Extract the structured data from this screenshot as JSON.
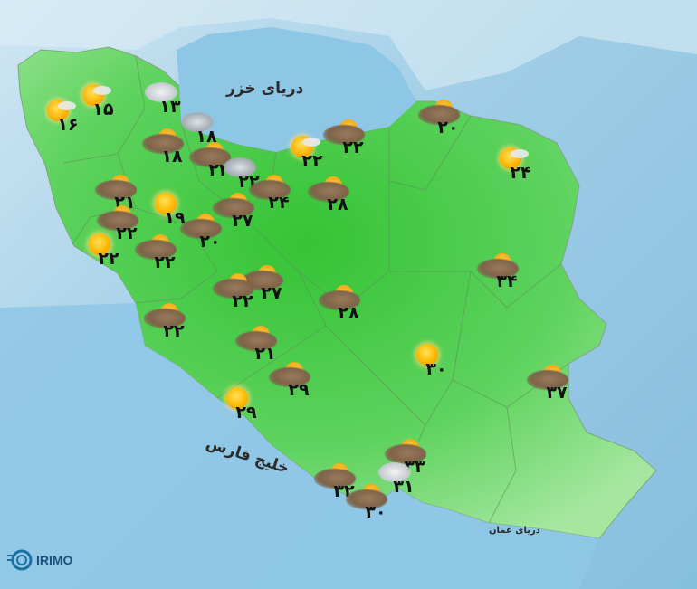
{
  "seas": {
    "caspian": "دریای خزر",
    "persian_gulf": "خلیج فارس",
    "oman_sea": "دریای عمان"
  },
  "logo": {
    "text": "IRIMO"
  },
  "colors": {
    "land": "#3fc83f",
    "sea": "#8ec7e6",
    "sun": "#ffb800",
    "dust": "#7d634a"
  },
  "stations": [
    {
      "temp": "۱۶",
      "icon": "sun-cloud"
    },
    {
      "temp": "۱۵",
      "icon": "sun-cloud"
    },
    {
      "temp": "۱۳",
      "icon": "cloud"
    },
    {
      "temp": "۱۸",
      "icon": "rain-cloud"
    },
    {
      "temp": "۱۸",
      "icon": "dust"
    },
    {
      "temp": "۲۲",
      "icon": "dust"
    },
    {
      "temp": "۲۲",
      "icon": "rain-cloud"
    },
    {
      "temp": "۲۲",
      "icon": "sun-cloud"
    },
    {
      "temp": "۲۲",
      "icon": "dust"
    },
    {
      "temp": "۲۴",
      "icon": "dust"
    },
    {
      "temp": "۲۸",
      "icon": "dust"
    },
    {
      "temp": "۲۱",
      "icon": "dust"
    },
    {
      "temp": "۱۹",
      "icon": "sun"
    },
    {
      "temp": "۲۲",
      "icon": "dust"
    },
    {
      "temp": "۲۷",
      "icon": "dust"
    },
    {
      "temp": "۲۰",
      "icon": "dust"
    },
    {
      "temp": "۲۲",
      "icon": "sun"
    },
    {
      "temp": "۲۲",
      "icon": "dust"
    },
    {
      "temp": "۲۷",
      "icon": "dust"
    },
    {
      "temp": "۲۲",
      "icon": "dust"
    },
    {
      "temp": "۲۸",
      "icon": "dust"
    },
    {
      "temp": "۲۲",
      "icon": "dust"
    },
    {
      "temp": "۲۱",
      "icon": "dust"
    },
    {
      "temp": "۲۹",
      "icon": "dust"
    },
    {
      "temp": "۲۹",
      "icon": "sun"
    },
    {
      "temp": "۲۰",
      "icon": "dust"
    },
    {
      "temp": "۲۴",
      "icon": "sun-cloud"
    },
    {
      "temp": "۳۴",
      "icon": "dust"
    },
    {
      "temp": "۳۰",
      "icon": "sun"
    },
    {
      "temp": "۳۷",
      "icon": "dust"
    },
    {
      "temp": "۳۳",
      "icon": "dust"
    },
    {
      "temp": "۳۱",
      "icon": "cloud"
    },
    {
      "temp": "۳۲",
      "icon": "dust"
    },
    {
      "temp": "۳۰",
      "icon": "dust"
    }
  ]
}
